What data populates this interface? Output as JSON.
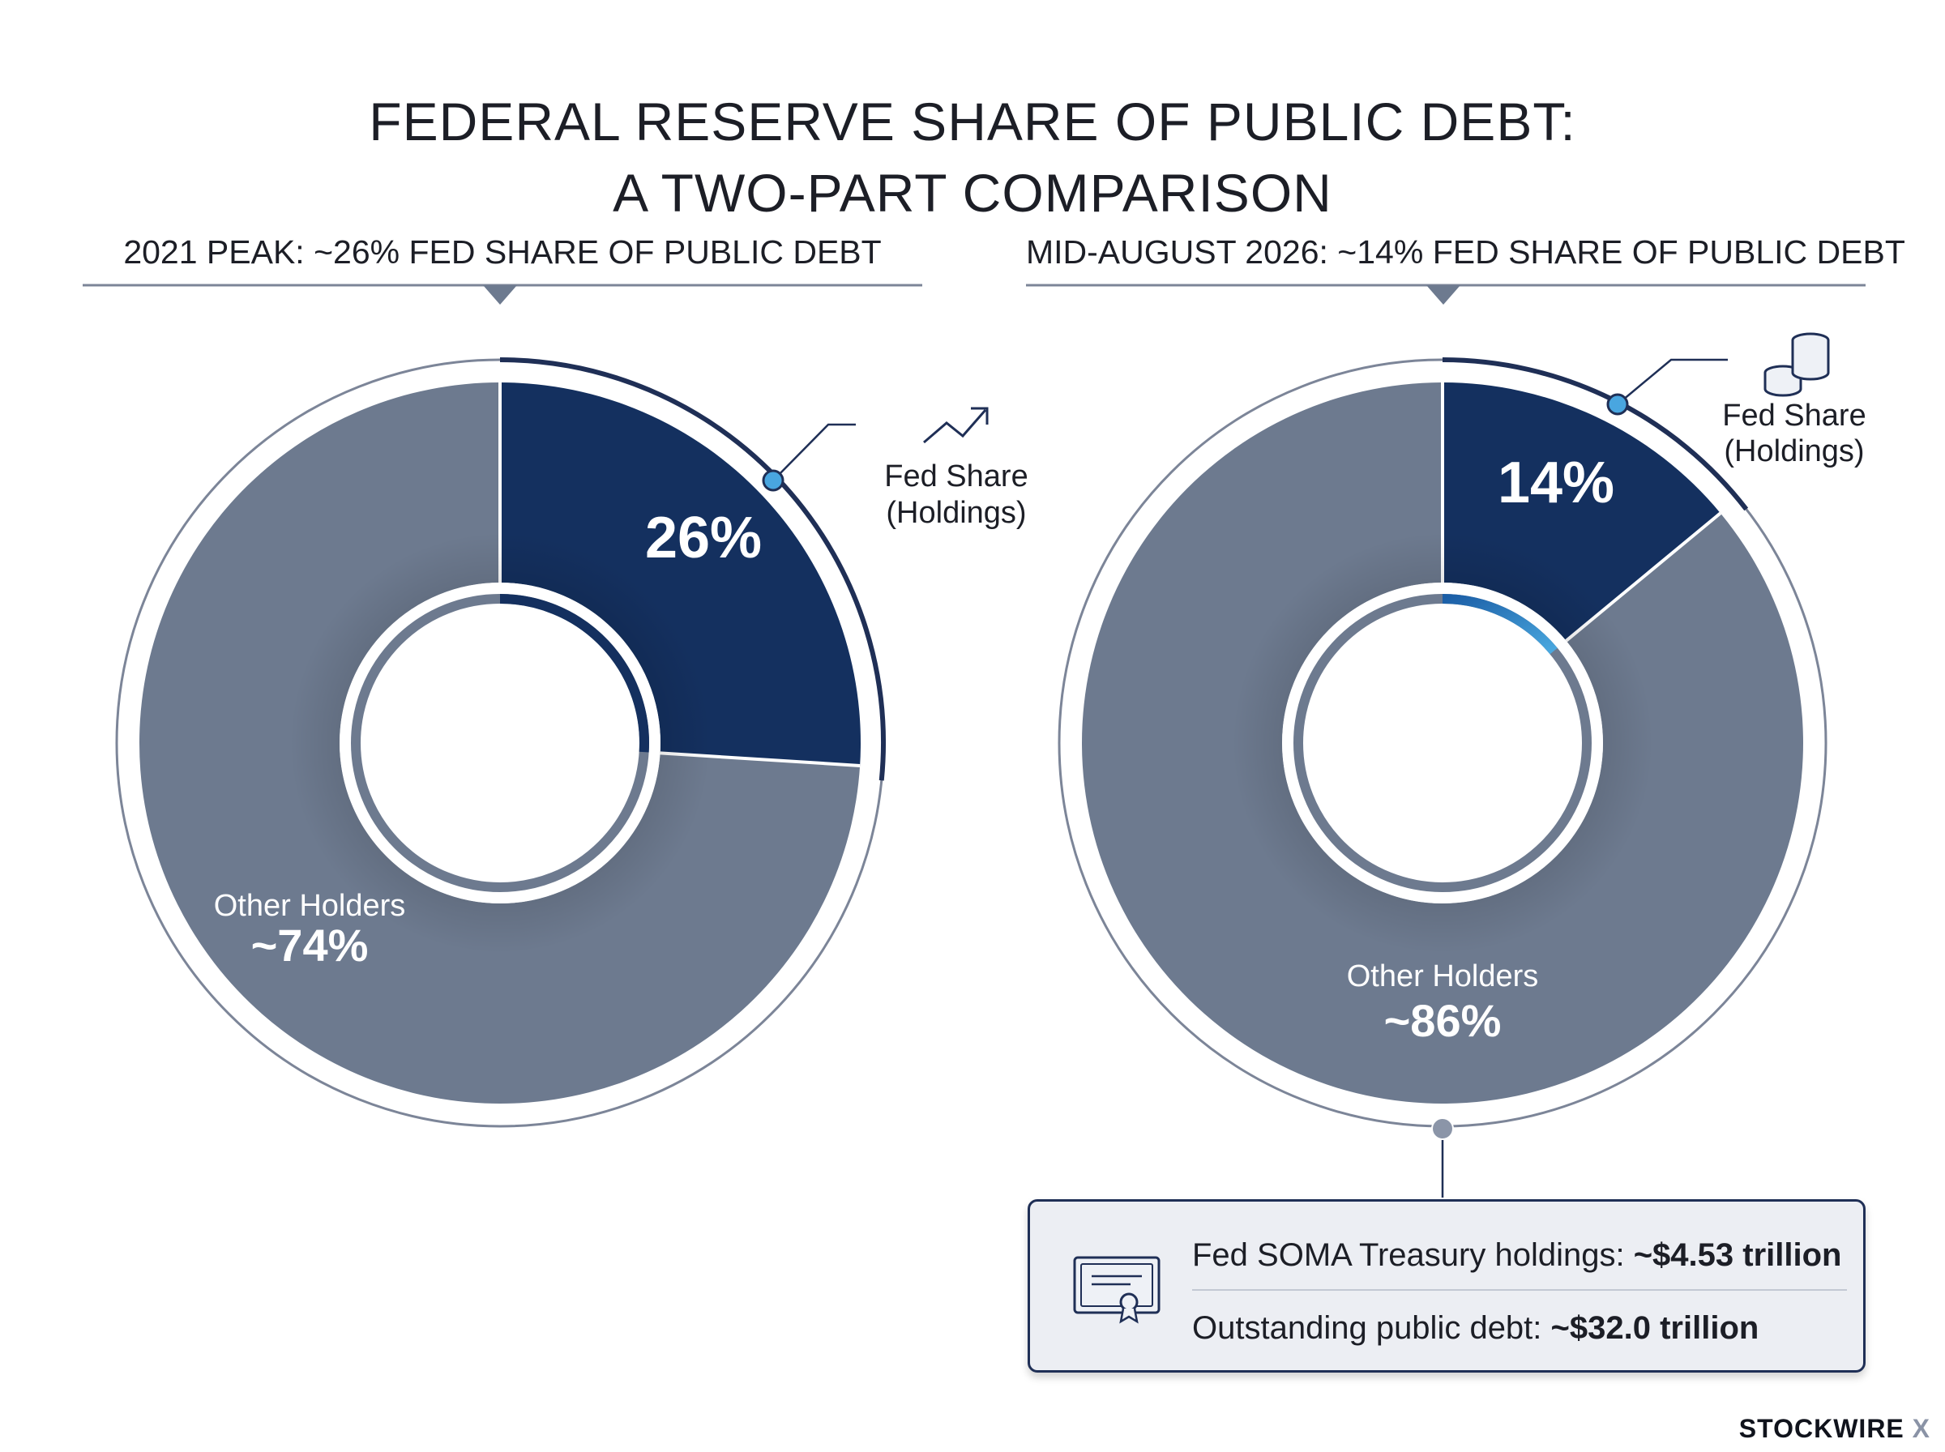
{
  "title_line1": "FEDERAL RESERVE SHARE OF PUBLIC DEBT:",
  "title_line2": "A TWO-PART COMPARISON",
  "chart_data": [
    {
      "type": "pie",
      "title": "2021 PEAK: ~26% FED SHARE OF PUBLIC DEBT",
      "slices": [
        {
          "name": "Fed Share (Holdings)",
          "name_line1": "Fed Share",
          "name_line2": "(Holdings)",
          "value": 26,
          "label": "26%",
          "color": "#14305f"
        },
        {
          "name": "Other Holders",
          "value": 74,
          "label": "~74%",
          "color": "#6d7a8f"
        }
      ],
      "icon": "trend-up-icon"
    },
    {
      "type": "pie",
      "title": "MID-AUGUST 2026: ~14% FED SHARE OF PUBLIC DEBT",
      "slices": [
        {
          "name": "Fed Share (Holdings)",
          "name_line1": "Fed Share",
          "name_line2": "(Holdings)",
          "value": 14,
          "label": "14%",
          "color": "#14305f"
        },
        {
          "name": "Other Holders",
          "value": 86,
          "label": "~86%",
          "color": "#6d7a8f"
        }
      ],
      "icon": "coin-stack-icon"
    }
  ],
  "info": {
    "soma_label": "Fed SOMA Treasury holdings: ",
    "soma_value": "~$4.53 trillion",
    "debt_label": "Outstanding public debt: ",
    "debt_value": "~$32.0 trillion",
    "icon": "certificate-icon"
  },
  "brand": {
    "name": "STOCKWIRE",
    "mark": "X"
  },
  "colors": {
    "fed": "#14305f",
    "other": "#6d7a8f",
    "accent": "#3aa0dc",
    "rule": "#7c8598"
  }
}
